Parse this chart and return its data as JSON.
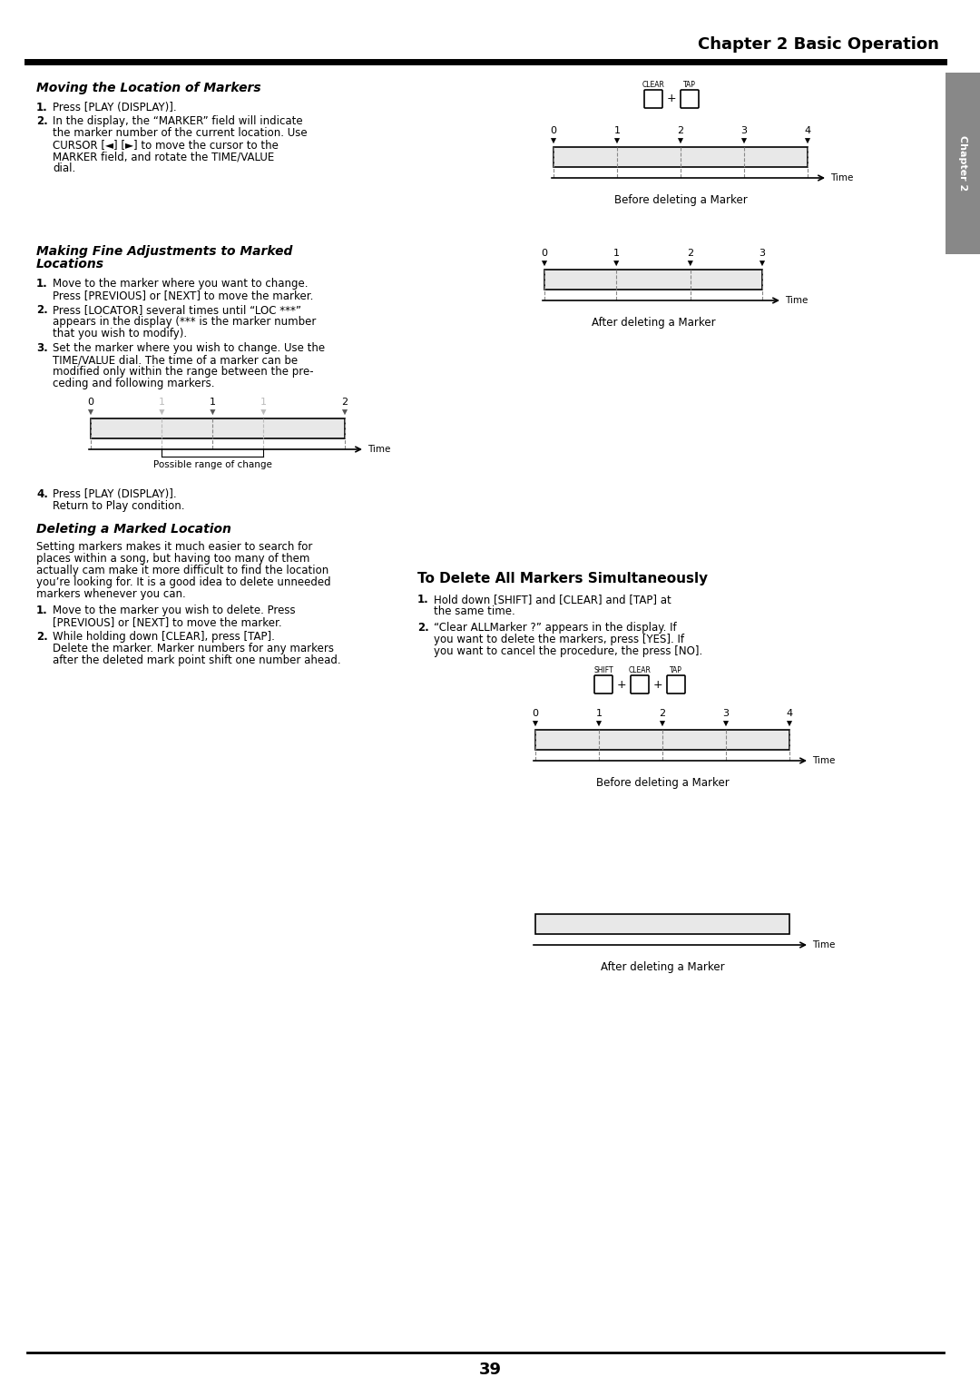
{
  "page_title": "Chapter 2 Basic Operation",
  "chapter_tab": "Chapter 2",
  "page_number": "39",
  "background_color": "#ffffff",
  "tab_color": "#808080",
  "section1_title": "Moving the Location of Markers",
  "section1_items": [
    "1. Press [PLAY (DISPLAY)].",
    "2. In the display, the “MARKER” field will indicate\nthe marker number of the current location. Use\nCURSOR [◄] [►] to move the cursor to the\nMARKER field, and rotate the TIME/VALUE\ndial."
  ],
  "section2_title": "Making Fine Adjustments to Marked\nLocations",
  "section2_items": [
    "1. Move to the marker where you want to change.\nPress [PREVIOUS] or [NEXT] to move the marker.",
    "2. Press [LOCATOR] several times until “LOC ***”\nappears in the display (*** is the marker number\nthat you wish to modify).",
    "3. Set the marker where you wish to change. Use the\nTIME/VALUE dial. The time of a marker can be\nmodified only within the range between the pre-\nceding and following markers.",
    "4. Press [PLAY (DISPLAY)].\nReturn to Play condition."
  ],
  "section3_title": "Deleting a Marked Location",
  "section3_intro": "Setting markers makes it much easier to search for\nplaces within a song, but having too many of them\nactually cam make it more difficult to find the location\nyou’re looking for. It is a good idea to delete unneeded\nmarkers whenever you can.",
  "section3_items": [
    "1. Move to the marker you wish to delete. Press\n[PREVIOUS] or [NEXT] to move the marker.",
    "2. While holding down [CLEAR], press [TAP].\nDelete the marker. Marker numbers for any markers\nafter the deleted mark point shift one number ahead."
  ],
  "section4_title": "To Delete All Markers Simultaneously",
  "section4_items": [
    "1. Hold down [SHIFT] and [CLEAR] and [TAP] at\nthe same time.",
    "2. “Clear ALLMarker ?” appears in the display. If\nyou want to delete the markers, press [YES]. If\nyou want to cancel the procedure, the press [NO]."
  ],
  "diag1_title": "Before deleting a Marker",
  "diag1_markers": [
    0,
    1,
    2,
    3,
    4
  ],
  "diag1_has_keys": true,
  "diag1_key_labels": [
    "CLEAR",
    "TAP"
  ],
  "diag2_title": "After deleting a Marker",
  "diag2_markers": [
    0,
    1,
    2,
    3
  ],
  "diag2_has_keys": false,
  "diag3_title": "",
  "diag3_markers": [
    0,
    1,
    1,
    2
  ],
  "diag3_has_keys": false,
  "diag3_caption": "Possible range of change",
  "diag3_ghost": [
    1
  ],
  "diag4_title": "Before deleting a Marker",
  "diag4_markers": [
    0,
    1,
    2,
    3,
    4
  ],
  "diag4_has_keys": true,
  "diag4_key_labels": [
    "SHIFT",
    "CLEAR",
    "TAP"
  ],
  "diag5_title": "After deleting a Marker",
  "diag5_markers": [],
  "diag5_has_keys": false
}
